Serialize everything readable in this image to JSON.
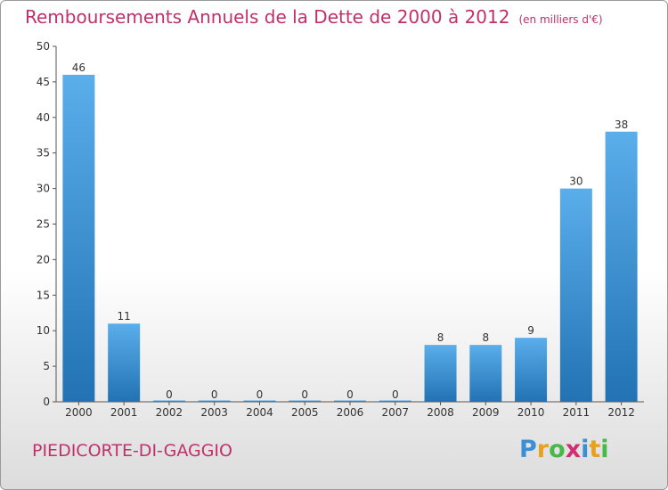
{
  "title": "Remboursements Annuels de la Dette de 2000 à 2012",
  "subtitle": "(en milliers d'€)",
  "commune": "PIEDICORTE-DI-GAGGIO",
  "logo": {
    "letters": [
      "P",
      "r",
      "o",
      "x",
      "i",
      "t",
      "i"
    ],
    "colors": [
      "#3a8fd6",
      "#e8a020",
      "#48b848",
      "#d03070",
      "#3a8fd6",
      "#e8a020",
      "#48b848"
    ]
  },
  "colors": {
    "accent": "#c0306a",
    "bar_top": "#5aaeea",
    "bar_bottom": "#2272b4"
  },
  "chart_data": {
    "type": "bar",
    "title": "Remboursements Annuels de la Dette de 2000 à 2012",
    "subtitle": "(en milliers d'€)",
    "categories": [
      "2000",
      "2001",
      "2002",
      "2003",
      "2004",
      "2005",
      "2006",
      "2007",
      "2008",
      "2009",
      "2010",
      "2011",
      "2012"
    ],
    "values": [
      46,
      11,
      0,
      0,
      0,
      0,
      0,
      0,
      8,
      8,
      9,
      30,
      38
    ],
    "ylim": [
      0,
      50
    ],
    "yticks": [
      0,
      5,
      10,
      15,
      20,
      25,
      30,
      35,
      40,
      45,
      50
    ],
    "grid": false,
    "legend": "none"
  }
}
